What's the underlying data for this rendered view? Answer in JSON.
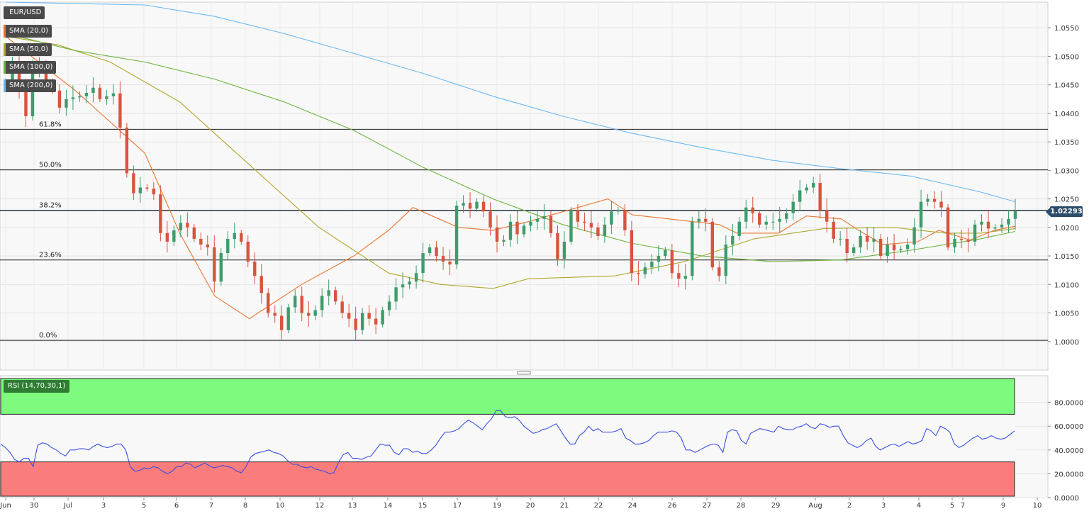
{
  "symbol": "EUR/USD",
  "legend": [
    {
      "label": "SMA (20,0)",
      "color": "#e8742f"
    },
    {
      "label": "SMA (50,0)",
      "color": "#b0a62c"
    },
    {
      "label": "SMA (100,0)",
      "color": "#6db33f"
    },
    {
      "label": "SMA (200,0)",
      "color": "#6cb9f0"
    }
  ],
  "current_price": "1.02293",
  "rsi_label": "RSI (14,70,30,1)",
  "colors": {
    "up": "#3d9c6b",
    "down": "#d9533e",
    "rsi_line": "#3a4fe0",
    "overbought": "#7efa7e",
    "oversold": "#fb7c7c"
  },
  "chart_data": {
    "type": "candlestick",
    "title": "EUR/USD",
    "x_ticks": [
      "Jun",
      "30",
      "Jul",
      "3",
      "5",
      "6",
      "7",
      "8",
      "10",
      "12",
      "13",
      "14",
      "15",
      "17",
      "19",
      "20",
      "21",
      "22",
      "24",
      "26",
      "27",
      "28",
      "29",
      "Aug",
      "2",
      "3",
      "4",
      "5",
      "7",
      "9",
      "10"
    ],
    "y_ticks": [
      "1.0000",
      "1.0050",
      "1.0100",
      "1.0150",
      "1.0200",
      "1.0250",
      "1.0300",
      "1.0350",
      "1.0400",
      "1.0450",
      "1.0500",
      "1.0550"
    ],
    "ylim": [
      0.995,
      1.0595
    ],
    "fibonacci": [
      {
        "label": "61.8%",
        "value": 1.0372
      },
      {
        "label": "50.0%",
        "value": 1.0301
      },
      {
        "label": "38.2%",
        "value": 1.023
      },
      {
        "label": "23.6%",
        "value": 1.0143
      },
      {
        "label": "0.0%",
        "value": 1.0002
      }
    ],
    "closes": [
      1.0455,
      1.0488,
      1.044,
      1.0395,
      1.0485,
      1.0475,
      1.0455,
      1.044,
      1.041,
      1.0425,
      1.0428,
      1.043,
      1.0436,
      1.0445,
      1.0425,
      1.043,
      1.0435,
      1.0375,
      1.0295,
      1.026,
      1.027,
      1.0268,
      1.0258,
      1.019,
      1.0175,
      1.0195,
      1.0208,
      1.02,
      1.018,
      1.017,
      1.0165,
      1.0105,
      1.0155,
      1.018,
      1.019,
      1.0175,
      1.014,
      1.0115,
      1.0085,
      1.005,
      1.0045,
      1.002,
      1.006,
      1.008,
      1.005,
      1.0045,
      1.0055,
      1.008,
      1.009,
      1.007,
      1.005,
      1.004,
      1.002,
      1.005,
      1.004,
      1.003,
      1.0055,
      1.007,
      1.0095,
      1.01,
      1.0105,
      1.012,
      1.0155,
      1.0165,
      1.015,
      1.014,
      1.0135,
      1.0238,
      1.0243,
      1.0233,
      1.0245,
      1.0228,
      1.02,
      1.0175,
      1.0178,
      1.021,
      1.0188,
      1.0203,
      1.021,
      1.0215,
      1.022,
      1.019,
      1.0145,
      1.0175,
      1.023,
      1.021,
      1.0208,
      1.02,
      1.0185,
      1.0205,
      1.0228,
      1.023,
      1.0195,
      1.012,
      1.0118,
      1.013,
      1.014,
      1.015,
      1.016,
      1.012,
      1.011,
      1.0115,
      1.021,
      1.0215,
      1.021,
      1.013,
      1.0115,
      1.017,
      1.0185,
      1.021,
      1.0235,
      1.0225,
      1.0205,
      1.021,
      1.021,
      1.0215,
      1.0225,
      1.0245,
      1.0265,
      1.027,
      1.0278,
      1.023,
      1.021,
      1.018,
      1.018,
      1.0155,
      1.0165,
      1.0185,
      1.0175,
      1.018,
      1.015,
      1.017,
      1.016,
      1.0162,
      1.017,
      1.02,
      1.0245,
      1.025,
      1.0245,
      1.0235,
      1.0165,
      1.018,
      1.0178,
      1.0175,
      1.0205,
      1.021,
      1.0198,
      1.02,
      1.0205,
      1.0215,
      1.0229
    ],
    "opens_highs_lows": "derived per candle from consecutive closes",
    "sma": [
      {
        "name": "SMA (20,0)",
        "points": [
          [
            0,
            1.0535
          ],
          [
            20,
            1.044
          ],
          [
            40,
            1.033
          ],
          [
            50,
            1.019
          ],
          [
            60,
            1.008
          ],
          [
            70,
            1.004
          ],
          [
            75,
            1.006
          ],
          [
            85,
            1.01
          ],
          [
            100,
            1.015
          ],
          [
            110,
            1.0195
          ],
          [
            117,
            1.0235
          ],
          [
            130,
            1.02
          ],
          [
            140,
            1.0195
          ],
          [
            150,
            1.021
          ],
          [
            173,
            1.025
          ],
          [
            180,
            1.0222
          ],
          [
            205,
            1.0205
          ],
          [
            210,
            1.019
          ],
          [
            222,
            1.019
          ],
          [
            230,
            1.022
          ],
          [
            240,
            1.0215
          ],
          [
            245,
            1.0195
          ],
          [
            252,
            1.017
          ],
          [
            262,
            1.0175
          ],
          [
            268,
            1.0195
          ],
          [
            277,
            1.0178
          ],
          [
            284,
            1.0195
          ],
          [
            290,
            1.0202
          ]
        ]
      },
      {
        "name": "SMA (50,0)",
        "points": [
          [
            0,
            1.0535
          ],
          [
            15,
            1.052
          ],
          [
            30,
            1.049
          ],
          [
            50,
            1.042
          ],
          [
            70,
            1.031
          ],
          [
            90,
            1.02
          ],
          [
            110,
            1.012
          ],
          [
            125,
            1.01
          ],
          [
            140,
            1.0093
          ],
          [
            150,
            1.011
          ],
          [
            175,
            1.0115
          ],
          [
            195,
            1.014
          ],
          [
            215,
            1.018
          ],
          [
            235,
            1.0198
          ],
          [
            255,
            1.02
          ],
          [
            270,
            1.019
          ],
          [
            280,
            1.019
          ],
          [
            290,
            1.0198
          ]
        ]
      },
      {
        "name": "SMA (100,0)",
        "points": [
          [
            0,
            1.054
          ],
          [
            20,
            1.051
          ],
          [
            40,
            1.049
          ],
          [
            60,
            1.046
          ],
          [
            80,
            1.042
          ],
          [
            100,
            1.037
          ],
          [
            120,
            1.0305
          ],
          [
            140,
            1.025
          ],
          [
            160,
            1.0205
          ],
          [
            180,
            1.0172
          ],
          [
            200,
            1.015
          ],
          [
            220,
            1.014
          ],
          [
            240,
            1.0143
          ],
          [
            260,
            1.016
          ],
          [
            280,
            1.018
          ],
          [
            290,
            1.0193
          ]
        ]
      },
      {
        "name": "SMA (200,0)",
        "points": [
          [
            0,
            1.0595
          ],
          [
            40,
            1.059
          ],
          [
            60,
            1.057
          ],
          [
            80,
            1.054
          ],
          [
            100,
            1.0505
          ],
          [
            120,
            1.047
          ],
          [
            140,
            1.043
          ],
          [
            160,
            1.0395
          ],
          [
            180,
            1.0365
          ],
          [
            200,
            1.034
          ],
          [
            220,
            1.0318
          ],
          [
            240,
            1.0303
          ],
          [
            260,
            1.029
          ],
          [
            280,
            1.0262
          ],
          [
            290,
            1.0245
          ]
        ]
      }
    ],
    "rsi": {
      "label": "RSI (14,70,30,1)",
      "ylim": [
        0,
        100
      ],
      "y_ticks": [
        "0.0000",
        "20.0000",
        "40.0000",
        "60.0000",
        "80.0000"
      ],
      "overbought": 70,
      "oversold": 30,
      "values": [
        45,
        42,
        38,
        32,
        30,
        33,
        33,
        26,
        44,
        46,
        45,
        42,
        40,
        37,
        35,
        40,
        40,
        41,
        41,
        40,
        43,
        45,
        43,
        42,
        43,
        45,
        45,
        40,
        26,
        22,
        23,
        25,
        24,
        26,
        25,
        22,
        20,
        22,
        26,
        26,
        29,
        28,
        25,
        27,
        29,
        27,
        25,
        26,
        27,
        26,
        25,
        22,
        21,
        26,
        34,
        37,
        38,
        39,
        40,
        38,
        37,
        35,
        31,
        28,
        28,
        26,
        25,
        26,
        24,
        23,
        22,
        20,
        21,
        30,
        36,
        38,
        33,
        33,
        32,
        34,
        35,
        40,
        45,
        44,
        44,
        38,
        36,
        41,
        41,
        38,
        39,
        37,
        37,
        40,
        44,
        50,
        55,
        55,
        56,
        58,
        62,
        65,
        63,
        60,
        57,
        62,
        66,
        73,
        73,
        68,
        67,
        68,
        65,
        60,
        57,
        54,
        55,
        57,
        58,
        60,
        62,
        56,
        50,
        45,
        45,
        52,
        55,
        60,
        56,
        58,
        55,
        55,
        55,
        56,
        58,
        50,
        48,
        45,
        45,
        46,
        48,
        52,
        55,
        55,
        55,
        56,
        55,
        50,
        40,
        40,
        38,
        40,
        42,
        44,
        45,
        44,
        38,
        55,
        57,
        56,
        48,
        45,
        54,
        56,
        58,
        57,
        56,
        55,
        60,
        58,
        57,
        57,
        59,
        60,
        62,
        59,
        58,
        62,
        61,
        59,
        60,
        60,
        52,
        46,
        44,
        42,
        44,
        48,
        50,
        43,
        40,
        42,
        44,
        45,
        43,
        45,
        47,
        45,
        46,
        48,
        58,
        56,
        52,
        60,
        58,
        55,
        45,
        42,
        44,
        47,
        50,
        52,
        49,
        50,
        52,
        50,
        49,
        50,
        53,
        56
      ]
    }
  }
}
